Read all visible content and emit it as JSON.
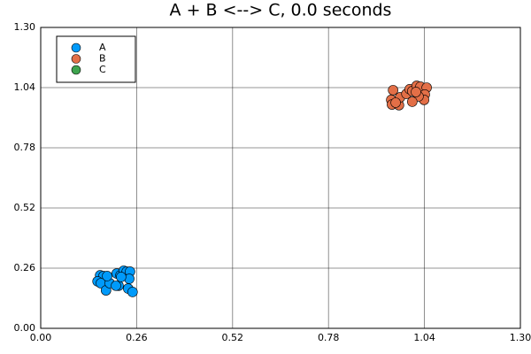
{
  "chart_data": {
    "type": "scatter",
    "title": "A + B <--> C, 0.0 seconds",
    "xlim": [
      0,
      1.3
    ],
    "ylim": [
      0,
      1.3
    ],
    "xticks": [
      {
        "value": 0,
        "label": "0.00"
      },
      0.26,
      0.52,
      0.78,
      1.04,
      {
        "value": 1.3,
        "label": "1.30"
      }
    ],
    "yticks": [
      {
        "value": 0,
        "label": "0.00"
      },
      0.26,
      0.52,
      0.78,
      1.04,
      {
        "value": 1.3,
        "label": "1.30"
      }
    ],
    "grid": true,
    "legend": "top-left",
    "series": [
      {
        "name": "A",
        "color": "#009afa",
        "x": [
          0.161,
          0.17,
          0.154,
          0.163,
          0.177,
          0.187,
          0.206,
          0.216,
          0.211,
          0.204,
          0.225,
          0.233,
          0.242,
          0.24,
          0.237,
          0.249,
          0.218,
          0.18
        ],
        "values": [
          0.229,
          0.226,
          0.203,
          0.195,
          0.164,
          0.195,
          0.237,
          0.229,
          0.184,
          0.184,
          0.249,
          0.245,
          0.245,
          0.214,
          0.172,
          0.157,
          0.222,
          0.226
        ]
      },
      {
        "name": "B",
        "color": "#e36f47",
        "x": [
          0.955,
          0.95,
          0.952,
          0.971,
          0.974,
          0.991,
          1.0,
          1.007,
          1.019,
          1.029,
          1.046,
          1.041,
          1.039,
          1.024,
          1.007,
          1.017,
          0.962
        ],
        "values": [
          1.029,
          0.987,
          0.967,
          0.964,
          0.998,
          1.013,
          1.033,
          1.025,
          1.048,
          1.044,
          1.04,
          1.01,
          0.987,
          1.002,
          0.979,
          1.021,
          0.975
        ]
      },
      {
        "name": "C",
        "color": "#3ea44e",
        "x": [],
        "values": []
      }
    ]
  }
}
